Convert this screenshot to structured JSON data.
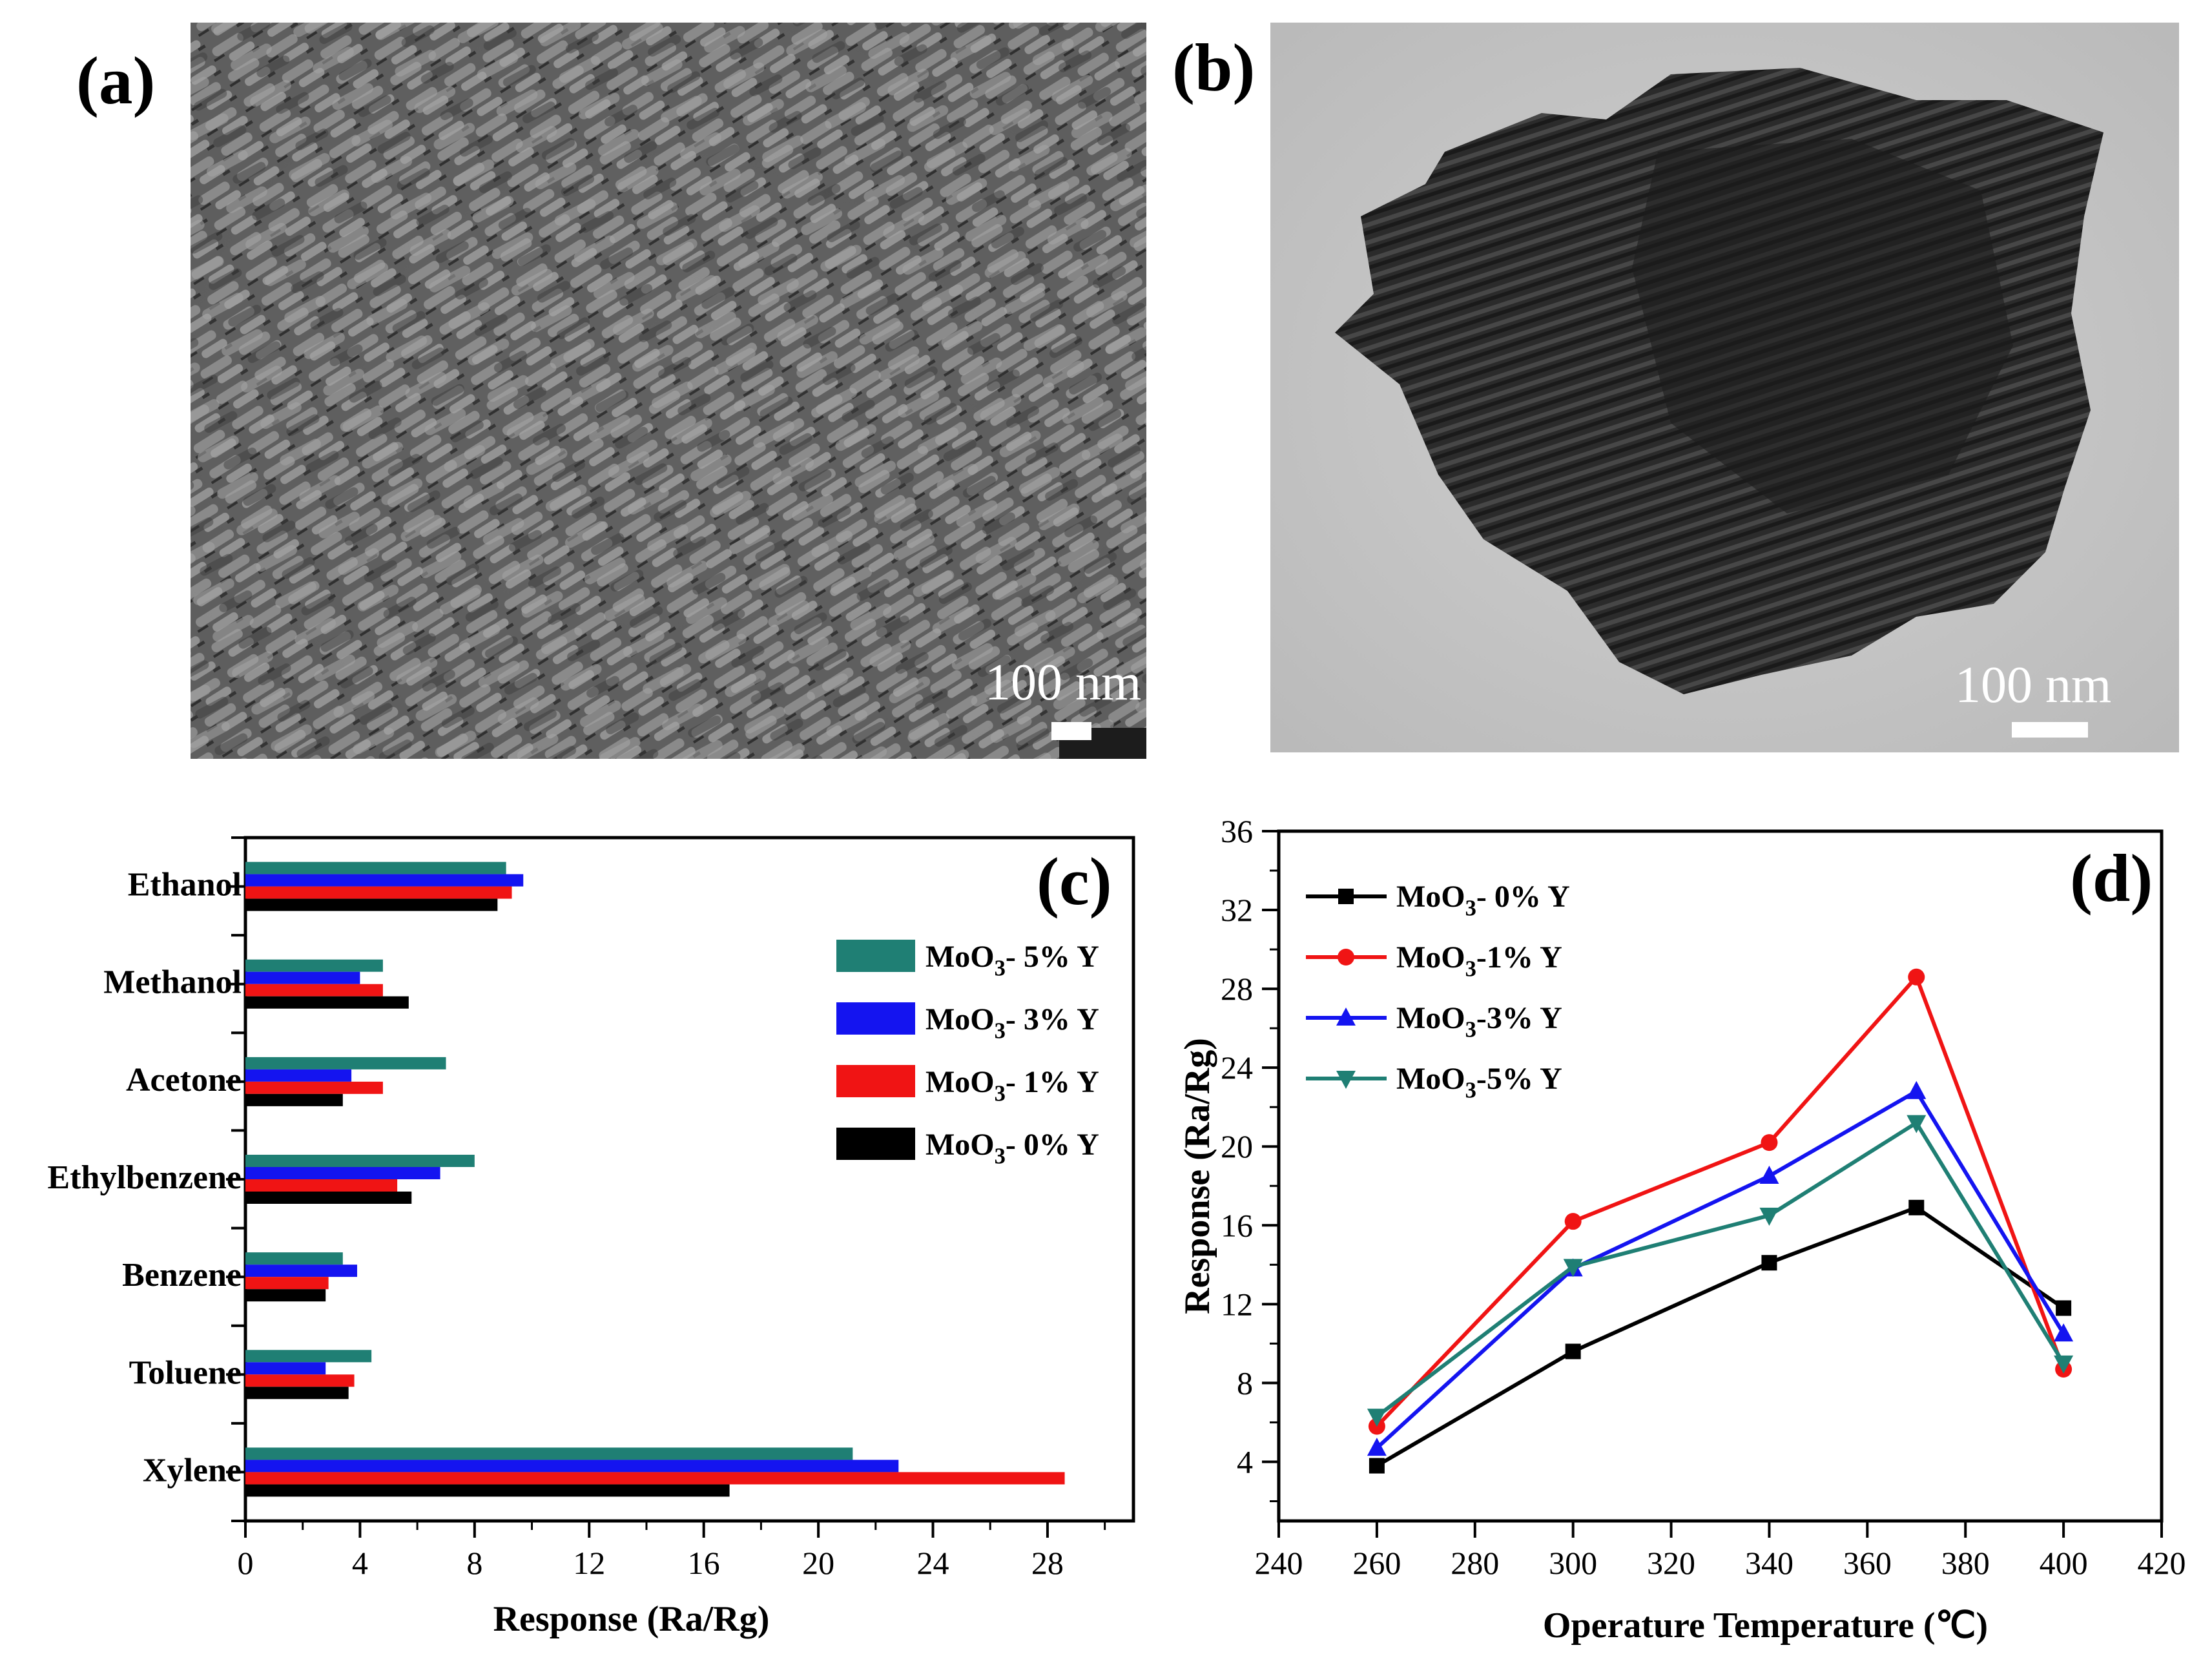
{
  "panels": {
    "a": {
      "label": "(a)",
      "scale_text": "100 nm"
    },
    "b": {
      "label": "(b)",
      "scale_text": "100 nm"
    },
    "c": {
      "label": "(c)"
    },
    "d": {
      "label": "(d)"
    }
  },
  "chart_data": [
    {
      "type": "bar",
      "orientation": "horizontal",
      "panel": "c",
      "categories": [
        "Ethanol",
        "Methanol",
        "Acetone",
        "Ethylbenzene",
        "Benzene",
        "Toluene",
        "Xylene"
      ],
      "series": [
        {
          "name": "MoO3- 5% Y",
          "color": "#1f7f74",
          "values": [
            9.1,
            4.8,
            7.0,
            8.0,
            3.4,
            4.4,
            21.2
          ]
        },
        {
          "name": "MoO3- 3% Y",
          "color": "#1414f0",
          "values": [
            9.7,
            4.0,
            3.7,
            6.8,
            3.9,
            2.8,
            22.8
          ]
        },
        {
          "name": "MoO3- 1% Y",
          "color": "#f01414",
          "values": [
            9.3,
            4.8,
            4.8,
            5.3,
            2.9,
            3.8,
            28.6
          ]
        },
        {
          "name": "MoO3- 0% Y",
          "color": "#000000",
          "values": [
            8.8,
            5.7,
            3.4,
            5.8,
            2.8,
            3.6,
            16.9
          ]
        }
      ],
      "xlabel": "Response (Ra/Rg)",
      "ylabel": "",
      "xlim": [
        0,
        31
      ],
      "xticks": [
        0,
        4,
        8,
        12,
        16,
        20,
        24,
        28
      ],
      "legend": "right",
      "legend_labels": [
        {
          "main": "MoO",
          "sub": "3",
          "rest": "- 5% Y"
        },
        {
          "main": "MoO",
          "sub": "3",
          "rest": "- 3% Y"
        },
        {
          "main": "MoO",
          "sub": "3",
          "rest": "- 1% Y"
        },
        {
          "main": "MoO",
          "sub": "3",
          "rest": "- 0% Y"
        }
      ]
    },
    {
      "type": "line",
      "panel": "d",
      "x": [
        260,
        300,
        340,
        370,
        400
      ],
      "series": [
        {
          "name": "MoO3- 0% Y",
          "color": "#000000",
          "marker": "square",
          "values": [
            3.8,
            9.6,
            14.1,
            16.9,
            11.8
          ]
        },
        {
          "name": "MoO3-1% Y",
          "color": "#f01414",
          "marker": "circle",
          "values": [
            5.8,
            16.2,
            20.2,
            28.6,
            8.7
          ]
        },
        {
          "name": "MoO3-3% Y",
          "color": "#1414f0",
          "marker": "triangle-up",
          "values": [
            4.7,
            13.8,
            18.5,
            22.8,
            10.5
          ]
        },
        {
          "name": "MoO3-5% Y",
          "color": "#1f7f74",
          "marker": "triangle-down",
          "values": [
            6.3,
            13.9,
            16.5,
            21.2,
            9.0
          ]
        }
      ],
      "xlabel": "Operature Temperature (℃)",
      "ylabel": "Response (Ra/Rg)",
      "xlim": [
        240,
        420
      ],
      "ylim": [
        1,
        36
      ],
      "xticks": [
        240,
        260,
        280,
        300,
        320,
        340,
        360,
        380,
        400,
        420
      ],
      "yticks": [
        4,
        8,
        12,
        16,
        20,
        24,
        28,
        32,
        36
      ],
      "legend": "top-left",
      "legend_labels": [
        {
          "main": "MoO",
          "sub": "3",
          "rest": "- 0% Y"
        },
        {
          "main": "MoO",
          "sub": "3",
          "rest": "-1% Y"
        },
        {
          "main": "MoO",
          "sub": "3",
          "rest": "-3% Y"
        },
        {
          "main": "MoO",
          "sub": "3",
          "rest": "-5% Y"
        }
      ]
    }
  ]
}
